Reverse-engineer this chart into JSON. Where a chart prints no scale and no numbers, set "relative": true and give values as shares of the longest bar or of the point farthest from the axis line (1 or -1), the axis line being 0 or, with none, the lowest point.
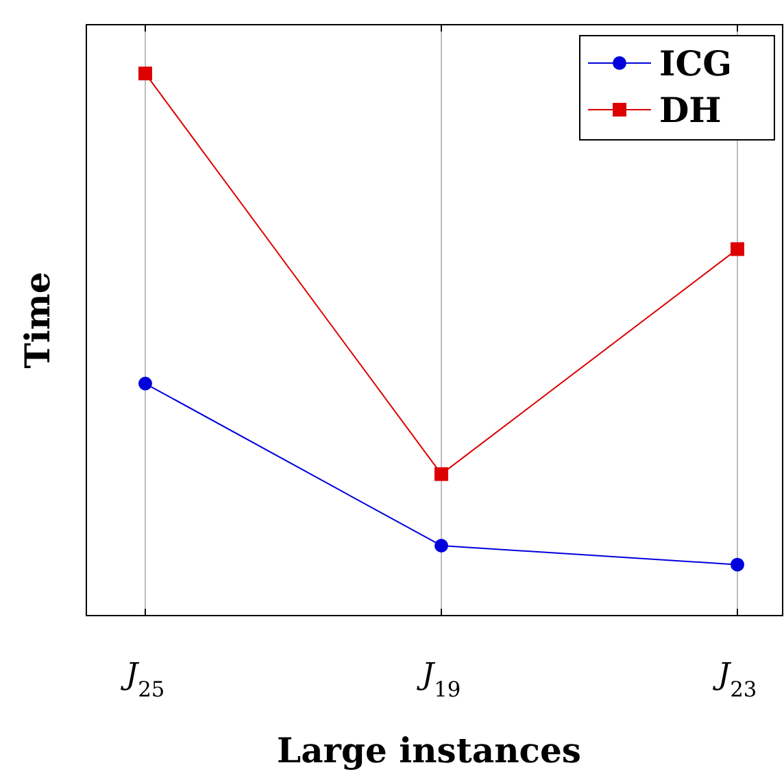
{
  "chart_data": {
    "type": "line",
    "relative": true,
    "xlabel": "Large instances",
    "ylabel": "Time",
    "categories": [
      "J$_{25}$",
      "J$_{19}$",
      "J$_{23}$"
    ],
    "grid": "x",
    "legend": "top right",
    "series": [
      {
        "name": "ICG",
        "color": "#0000dd",
        "marker": "circle",
        "values": [
          0.428,
          0.129,
          0.094
        ]
      },
      {
        "name": "DH",
        "color": "#dd0000",
        "marker": "square",
        "values": [
          1,
          0.261,
          0.676
        ]
      }
    ]
  }
}
